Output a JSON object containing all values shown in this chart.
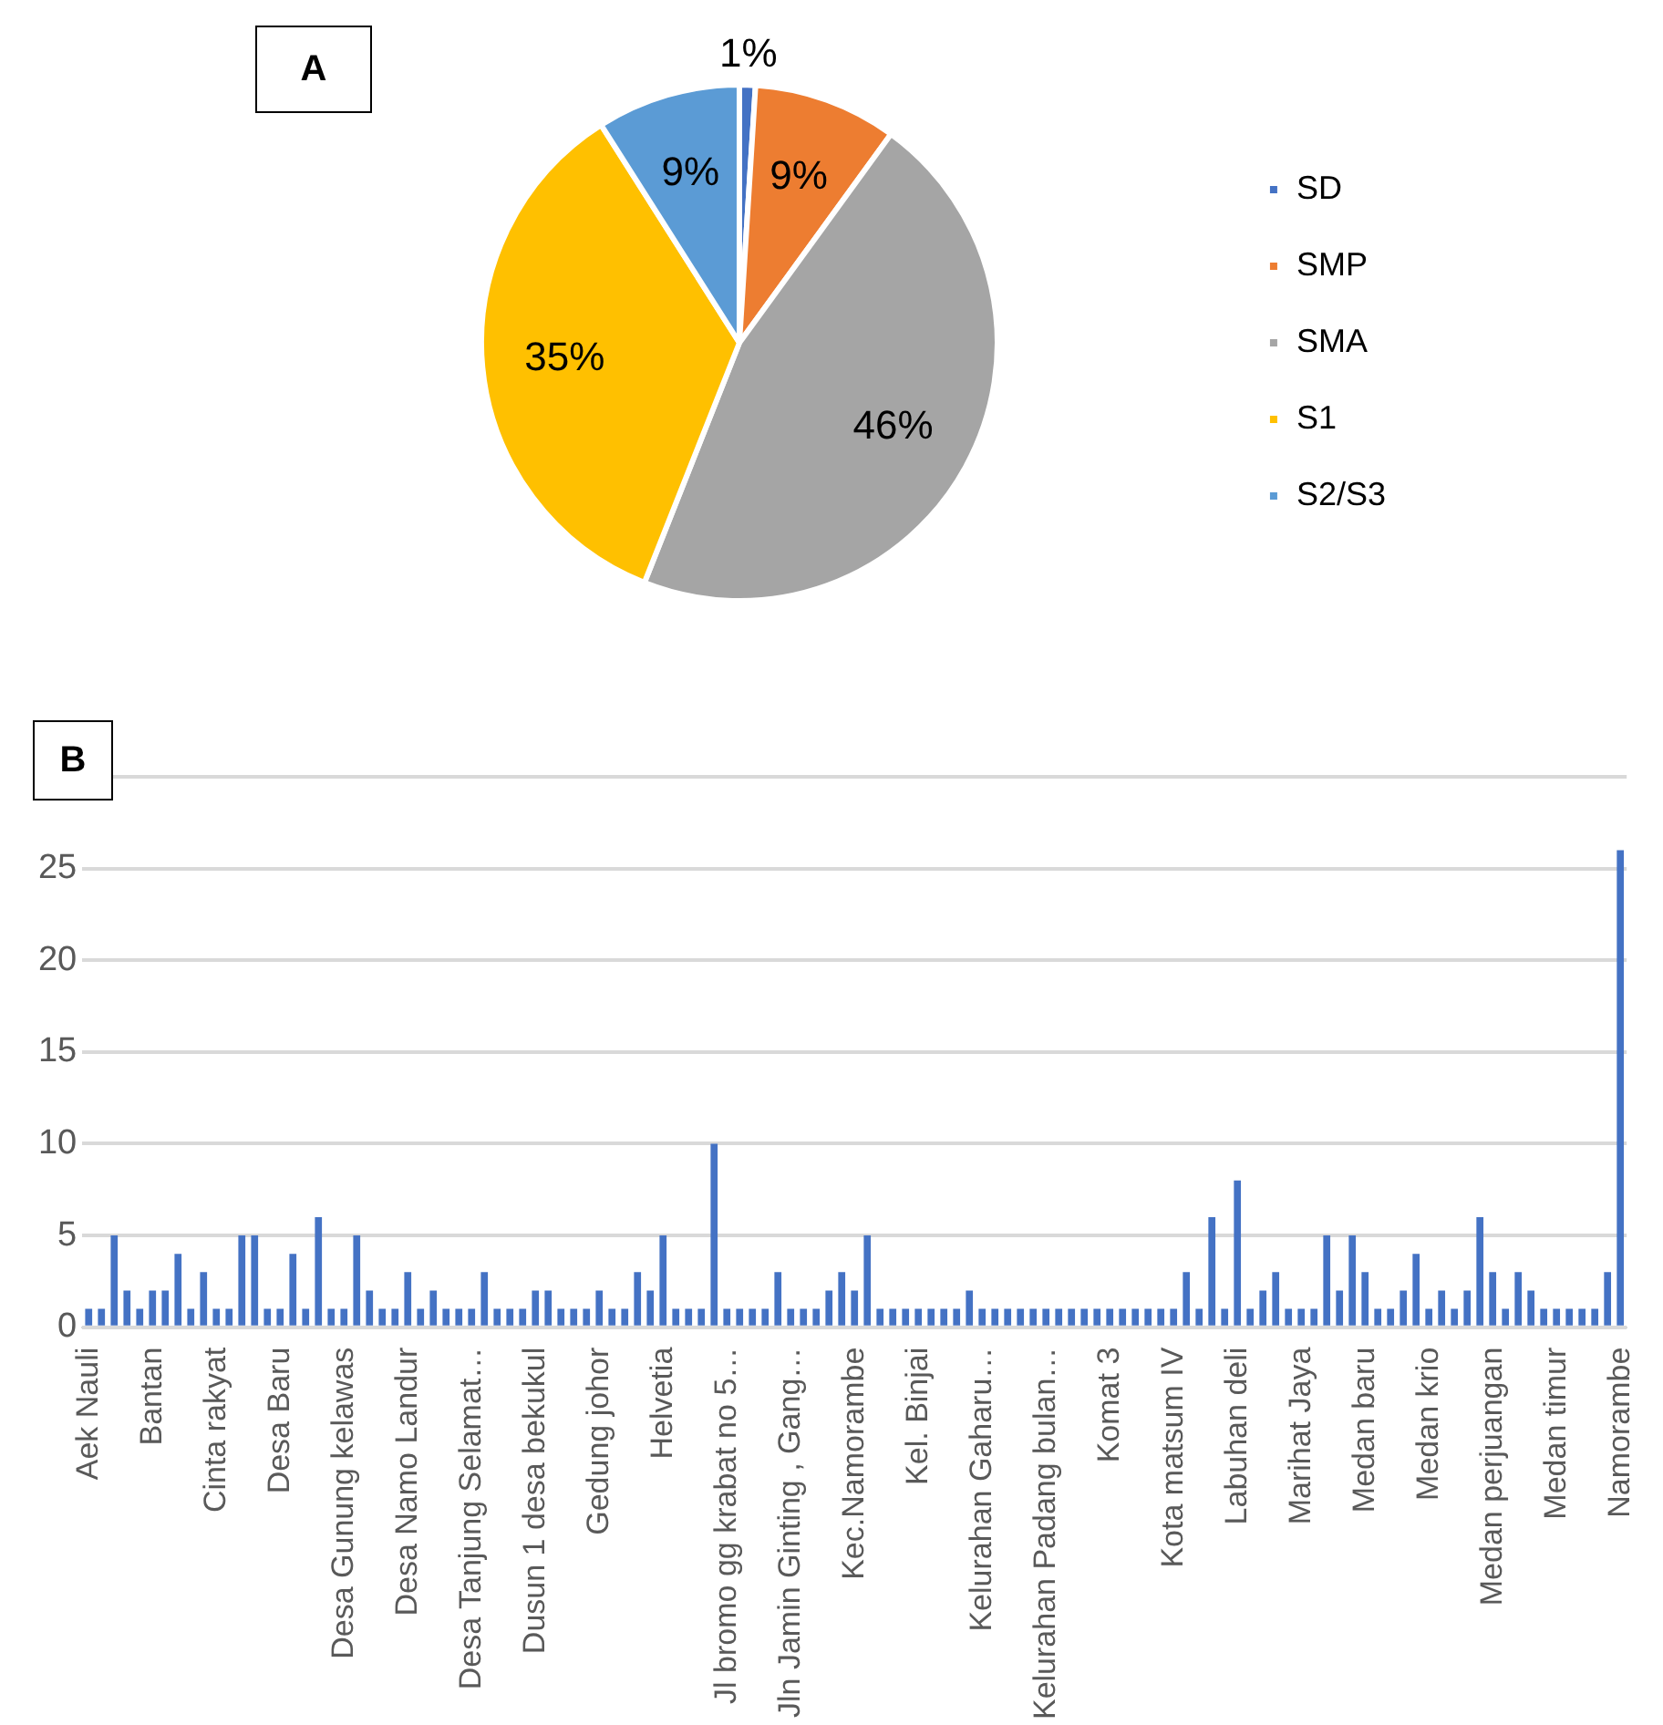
{
  "chart_data": [
    {
      "type": "pie",
      "annotations": [
        "A"
      ],
      "categories": [
        "SD",
        "SMP",
        "SMA",
        "S1",
        "S2/S3"
      ],
      "values": [
        1,
        9,
        46,
        35,
        9
      ],
      "colors": [
        "#4472c4",
        "#ed7d31",
        "#a5a5a5",
        "#ffc000",
        "#5b9bd5"
      ],
      "value_labels": [
        "1%",
        "9%",
        "46%",
        "35%",
        "9%"
      ],
      "legend": "right"
    },
    {
      "type": "bar",
      "annotations": [
        "B"
      ],
      "color": "#4472c4",
      "grid": "y",
      "ylim": [
        0,
        30
      ],
      "yticks": [
        0,
        5,
        10,
        15,
        20,
        25,
        {
          "value": 30,
          "label": null
        }
      ],
      "categories": [
        "Aek Nauli",
        null,
        null,
        null,
        null,
        "Bantan",
        null,
        null,
        null,
        null,
        "Cinta rakyat",
        null,
        null,
        null,
        null,
        "Desa Baru",
        null,
        null,
        null,
        null,
        "Desa Gunung kelawas",
        null,
        null,
        null,
        null,
        "Desa Namo Landur",
        null,
        null,
        null,
        null,
        "Desa Tanjung Selamat…",
        null,
        null,
        null,
        null,
        "Dusun 1 desa bekukul",
        null,
        null,
        null,
        null,
        "Gedung johor",
        null,
        null,
        null,
        null,
        "Helvetia",
        null,
        null,
        null,
        null,
        "Jl bromo gg krabat no 5…",
        null,
        null,
        null,
        null,
        "Jln Jamin Ginting , Gang…",
        null,
        null,
        null,
        null,
        "Kec.Namorambe",
        null,
        null,
        null,
        null,
        "Kel. Binjai",
        null,
        null,
        null,
        null,
        "Kelurahan Gaharu…",
        null,
        null,
        null,
        null,
        "Kelurahan Padang bulan…",
        null,
        null,
        null,
        null,
        "Komat 3",
        null,
        null,
        null,
        null,
        "Kota matsum IV",
        null,
        null,
        null,
        null,
        "Labuhan deli",
        null,
        null,
        null,
        null,
        "Marihat Jaya",
        null,
        null,
        null,
        null,
        "Medan baru",
        null,
        null,
        null,
        null,
        "Medan krio",
        null,
        null,
        null,
        null,
        "Medan perjuangan",
        null,
        null,
        null,
        null,
        "Medan timur",
        null,
        null,
        null,
        null,
        "Namorambe"
      ],
      "values": [
        1,
        1,
        5,
        2,
        1,
        2,
        2,
        4,
        1,
        3,
        1,
        1,
        5,
        5,
        1,
        1,
        4,
        1,
        6,
        1,
        1,
        5,
        2,
        1,
        1,
        3,
        1,
        2,
        1,
        1,
        1,
        3,
        1,
        1,
        1,
        2,
        2,
        1,
        1,
        1,
        2,
        1,
        1,
        3,
        2,
        5,
        1,
        1,
        1,
        10,
        1,
        1,
        1,
        1,
        3,
        1,
        1,
        1,
        2,
        3,
        2,
        5,
        1,
        1,
        1,
        1,
        1,
        1,
        1,
        2,
        1,
        1,
        1,
        1,
        1,
        1,
        1,
        1,
        1,
        1,
        1,
        1,
        1,
        1,
        1,
        1,
        3,
        1,
        6,
        1,
        8,
        1,
        2,
        3,
        1,
        1,
        1,
        5,
        2,
        5,
        3,
        1,
        1,
        2,
        4,
        1,
        2,
        1,
        2,
        6,
        3,
        1,
        3,
        2,
        1,
        1,
        1,
        1,
        1,
        3,
        26
      ]
    }
  ]
}
